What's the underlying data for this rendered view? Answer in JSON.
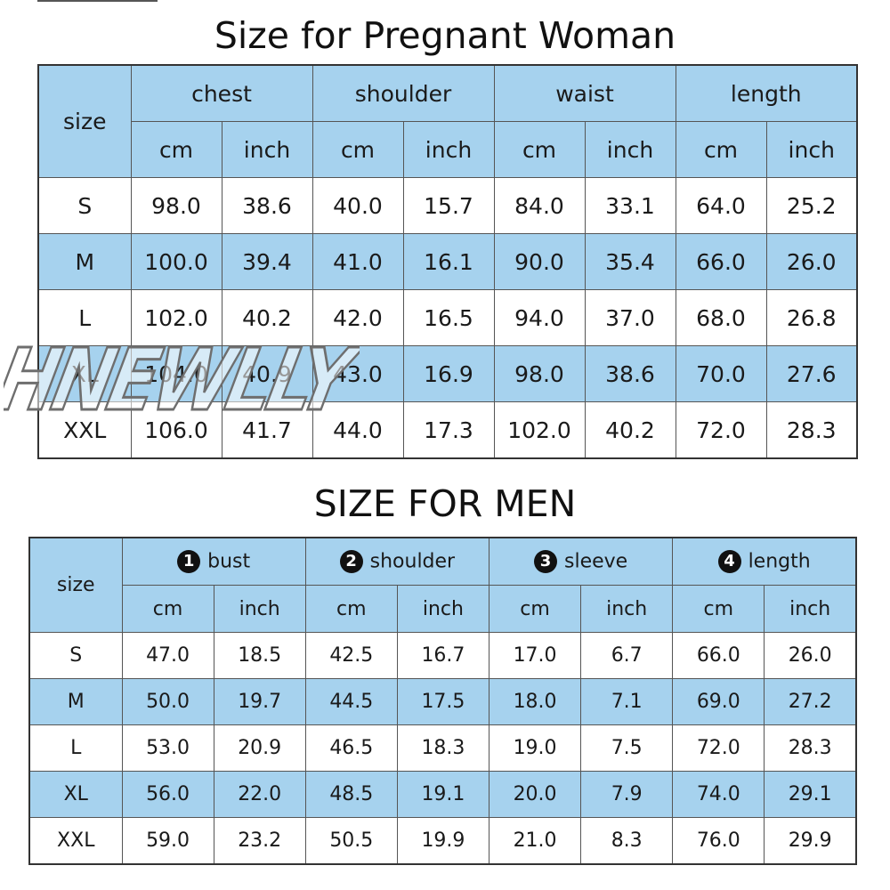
{
  "women": {
    "title": "Size for Pregnant Woman",
    "size_header": "size",
    "measure_headers": [
      "chest",
      "shoulder",
      "waist",
      "length"
    ],
    "unit_headers": [
      "cm",
      "inch",
      "cm",
      "inch",
      "cm",
      "inch",
      "cm",
      "inch"
    ],
    "rows": [
      {
        "size": "S",
        "values": [
          "98.0",
          "38.6",
          "40.0",
          "15.7",
          "84.0",
          "33.1",
          "64.0",
          "25.2"
        ]
      },
      {
        "size": "M",
        "values": [
          "100.0",
          "39.4",
          "41.0",
          "16.1",
          "90.0",
          "35.4",
          "66.0",
          "26.0"
        ]
      },
      {
        "size": "L",
        "values": [
          "102.0",
          "40.2",
          "42.0",
          "16.5",
          "94.0",
          "37.0",
          "68.0",
          "26.8"
        ]
      },
      {
        "size": "XL",
        "values": [
          "104.0",
          "40.9",
          "43.0",
          "16.9",
          "98.0",
          "38.6",
          "70.0",
          "27.6"
        ]
      },
      {
        "size": "XXL",
        "values": [
          "106.0",
          "41.7",
          "44.0",
          "17.3",
          "102.0",
          "40.2",
          "72.0",
          "28.3"
        ]
      }
    ]
  },
  "men": {
    "title": "SIZE FOR MEN",
    "size_header": "size",
    "measure_headers": [
      {
        "number": "1",
        "label": "bust"
      },
      {
        "number": "2",
        "label": "shoulder"
      },
      {
        "number": "3",
        "label": "sleeve"
      },
      {
        "number": "4",
        "label": "length"
      }
    ],
    "unit_headers": [
      "cm",
      "inch",
      "cm",
      "inch",
      "cm",
      "inch",
      "cm",
      "inch"
    ],
    "rows": [
      {
        "size": "S",
        "values": [
          "47.0",
          "18.5",
          "42.5",
          "16.7",
          "17.0",
          "6.7",
          "66.0",
          "26.0"
        ]
      },
      {
        "size": "M",
        "values": [
          "50.0",
          "19.7",
          "44.5",
          "17.5",
          "18.0",
          "7.1",
          "69.0",
          "27.2"
        ]
      },
      {
        "size": "L",
        "values": [
          "53.0",
          "20.9",
          "46.5",
          "18.3",
          "19.0",
          "7.5",
          "72.0",
          "28.3"
        ]
      },
      {
        "size": "XL",
        "values": [
          "56.0",
          "22.0",
          "48.5",
          "19.1",
          "20.0",
          "7.9",
          "74.0",
          "29.1"
        ]
      },
      {
        "size": "XXL",
        "values": [
          "59.0",
          "23.2",
          "50.5",
          "19.9",
          "21.0",
          "8.3",
          "76.0",
          "29.9"
        ]
      }
    ]
  },
  "watermark": {
    "text": "HNEWLLY"
  },
  "colors": {
    "header_blue": "#a6d2ee",
    "row_white": "#ffffff",
    "row_blue": "#a6d2ee"
  }
}
